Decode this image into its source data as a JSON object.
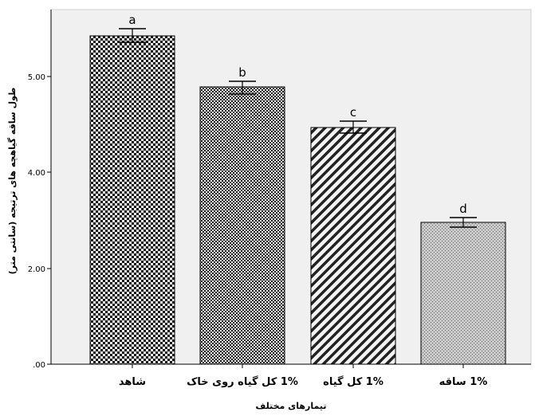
{
  "chart_data": {
    "type": "bar",
    "categories": [
      "شاهد",
      "1% کل گیاه روی خاک",
      "1% کل گیاه",
      "1% ساقه"
    ],
    "values": [
      6.05,
      5.0,
      4.6,
      2.95
    ],
    "error_upper": [
      6.2,
      5.1,
      4.7,
      3.05
    ],
    "error_lower": [
      5.95,
      4.9,
      4.5,
      2.85
    ],
    "significance_letters": [
      "a",
      "b",
      "c",
      "d"
    ],
    "xlabel": "تیمارهای مختلف",
    "ylabel": "طول ساقه گیاهچه های ترتیجه (سانتی متر)",
    "ylim": [
      0,
      6.7
    ],
    "yticks": [
      0,
      2,
      4,
      5
    ],
    "ytick_labels": [
      ".00",
      "2.00",
      "4.00",
      "5.00"
    ],
    "grid": false,
    "colors": {
      "plot_background": "#f0f0f0",
      "bar_dark": "#111111",
      "bar_mid": "#333333",
      "bar_light": "#9a9a9a",
      "axis": "#000000"
    },
    "patterns": [
      "checker",
      "fine-checker",
      "diagonal",
      "dots"
    ]
  }
}
